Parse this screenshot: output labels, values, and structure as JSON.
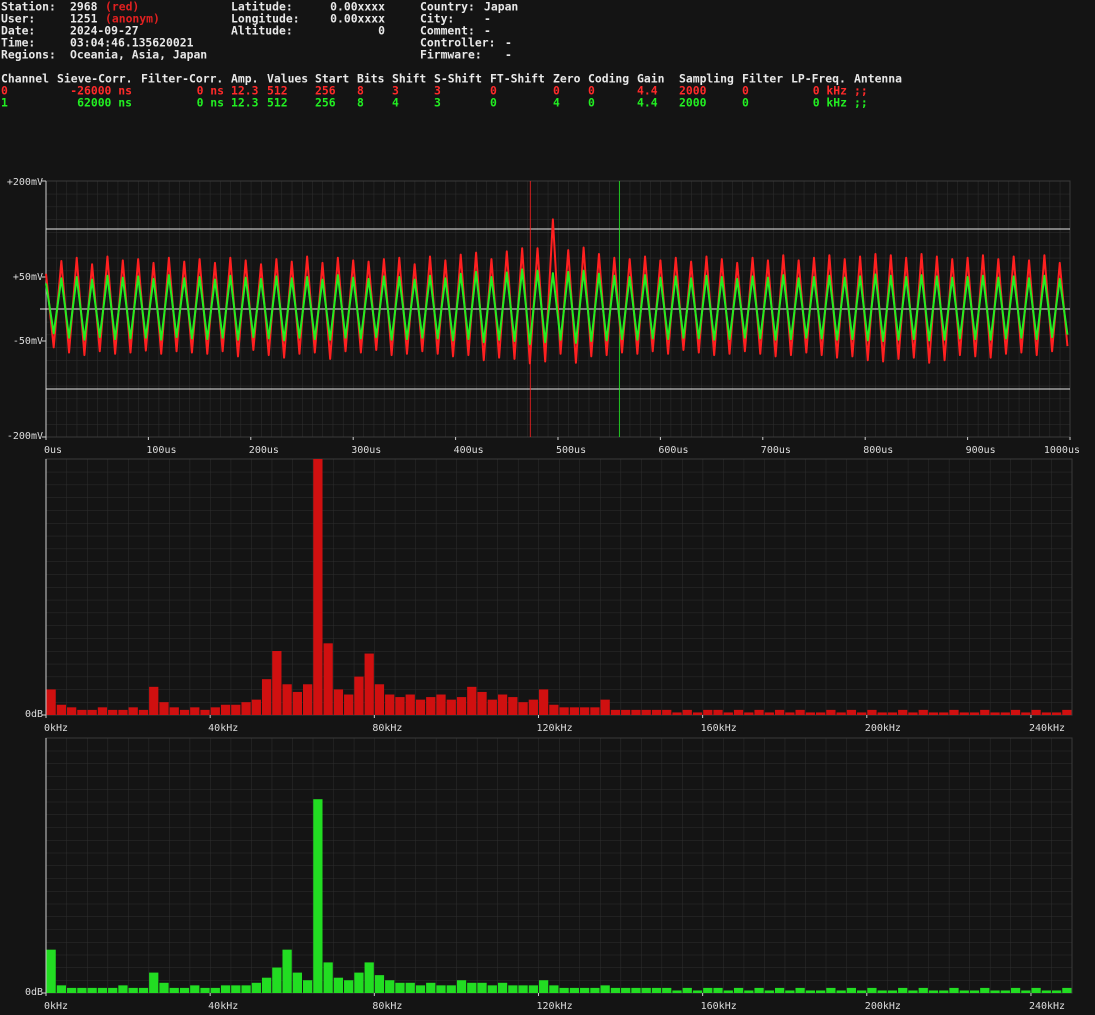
{
  "info": {
    "left": [
      {
        "label": "Station:",
        "value": "2968",
        "note": "(red)"
      },
      {
        "label": "User:",
        "value": "1251",
        "note": "(anonym)"
      },
      {
        "label": "Date:",
        "value": "2024-09-27"
      },
      {
        "label": "Time:",
        "value": "03:04:46.135620021"
      },
      {
        "label": "Regions:",
        "value": "Oceania, Asia, Japan"
      }
    ],
    "middle": [
      {
        "label": "Latitude:",
        "value": "0.00xxxx"
      },
      {
        "label": "Longitude:",
        "value": "0.00xxxx"
      },
      {
        "label": "Altitude:",
        "value": "0"
      }
    ],
    "right": [
      {
        "label": "Country:",
        "value": "Japan"
      },
      {
        "label": "City:",
        "value": "-"
      },
      {
        "label": "Comment:",
        "value": "-"
      },
      {
        "label": "Controller:",
        "value": "-"
      },
      {
        "label": "Firmware:",
        "value": "-"
      }
    ]
  },
  "table": {
    "header": [
      "Channel",
      "Sieve-Corr.",
      "Filter-Corr.",
      "Amp.",
      "Values",
      "Start",
      "Bits",
      "Shift",
      "S-Shift",
      "FT-Shift",
      "Zero",
      "Coding",
      "Gain",
      "Sampling",
      "Filter",
      "LP-Freq.",
      "Antenna"
    ],
    "rows": [
      [
        "0",
        "-26000 ns",
        "0 ns",
        "12.3",
        "512",
        "256",
        "8",
        "3",
        "3",
        "0",
        "0",
        "0",
        "4.4",
        "2000",
        "0",
        "0 kHz",
        ";;"
      ],
      [
        "1",
        "62000 ns",
        "0 ns",
        "12.3",
        "512",
        "256",
        "8",
        "4",
        "3",
        "0",
        "4",
        "0",
        "4.4",
        "2000",
        "0",
        "0 kHz",
        ";;"
      ]
    ],
    "row_colors": [
      "#ff2a2a",
      "#22ee22"
    ]
  },
  "chart_data": [
    {
      "type": "line",
      "grid": true,
      "x": [
        0,
        7.5,
        15,
        22.5,
        30,
        37.5,
        45,
        52.5,
        60,
        67.5,
        75,
        82.5,
        90,
        97.5,
        105,
        112.5,
        120,
        127.5,
        135,
        142.5,
        150,
        157.5,
        165,
        172.5,
        180,
        187.5,
        195,
        202.5,
        210,
        217.5,
        225,
        232.5,
        240,
        247.5,
        255,
        262.5,
        270,
        277.5,
        285,
        292.5,
        300,
        307.5,
        315,
        322.5,
        330,
        337.5,
        345,
        352.5,
        360,
        367.5,
        375,
        382.5,
        390,
        397.5,
        405,
        412.5,
        420,
        427.5,
        435,
        442.5,
        450,
        457.5,
        465,
        472.5,
        480,
        487.5,
        495,
        502.5,
        510,
        517.5,
        525,
        532.5,
        540,
        547.5,
        555,
        562.5,
        570,
        577.5,
        585,
        592.5,
        600,
        607.5,
        615,
        622.5,
        630,
        637.5,
        645,
        652.5,
        660,
        667.5,
        675,
        682.5,
        690,
        697.5,
        705,
        712.5,
        720,
        727.5,
        735,
        742.5,
        750,
        757.5,
        765,
        772.5,
        780,
        787.5,
        795,
        802.5,
        810,
        817.5,
        825,
        832.5,
        840,
        847.5,
        855,
        862.5,
        870,
        877.5,
        885,
        892.5,
        900,
        907.5,
        915,
        922.5,
        930,
        937.5,
        945,
        952.5,
        960,
        967.5,
        975,
        982.5,
        990,
        997.5
      ],
      "xlim": [
        0,
        1000
      ],
      "xticks": [
        {
          "value": 0,
          "label": "0us"
        },
        {
          "value": 100,
          "label": "100us"
        },
        {
          "value": 200,
          "label": "200us"
        },
        {
          "value": 300,
          "label": "300us"
        },
        {
          "value": 400,
          "label": "400us"
        },
        {
          "value": 500,
          "label": "500us"
        },
        {
          "value": 600,
          "label": "600us"
        },
        {
          "value": 700,
          "label": "700us"
        },
        {
          "value": 800,
          "label": "800us"
        },
        {
          "value": 900,
          "label": "900us"
        },
        {
          "value": 1000,
          "label": "1000us"
        }
      ],
      "ylim": [
        -200,
        200
      ],
      "yticks": [
        {
          "value": 200,
          "label": "+200mV"
        },
        {
          "value": 50,
          "label": "+50mV"
        },
        {
          "value": -50,
          "label": "-50mV"
        },
        {
          "value": -200,
          "label": "-200mV"
        }
      ],
      "reference_lines": [
        125,
        0,
        -125
      ],
      "series": [
        {
          "color": "#ff2020",
          "marker": 473,
          "values": [
            55,
            -60,
            75,
            -68,
            80,
            -72,
            70,
            -66,
            82,
            -70,
            76,
            -68,
            78,
            -65,
            72,
            -70,
            80,
            -66,
            74,
            -68,
            78,
            -70,
            72,
            -66,
            80,
            -74,
            76,
            -64,
            70,
            -72,
            78,
            -76,
            74,
            -70,
            82,
            -68,
            72,
            -78,
            80,
            -66,
            76,
            -68,
            74,
            -64,
            78,
            -72,
            80,
            -70,
            70,
            -66,
            82,
            -70,
            76,
            -74,
            85,
            -72,
            88,
            -80,
            78,
            -76,
            90,
            -78,
            95,
            -85,
            95,
            -82,
            140,
            -70,
            92,
            -84,
            96,
            -74,
            86,
            -72,
            80,
            -68,
            78,
            -70,
            82,
            -66,
            76,
            -70,
            80,
            -64,
            74,
            -68,
            82,
            -72,
            78,
            -70,
            72,
            -66,
            80,
            -70,
            76,
            -74,
            84,
            -72,
            76,
            -68,
            80,
            -72,
            84,
            -76,
            78,
            -74,
            82,
            -80,
            86,
            -82,
            84,
            -78,
            80,
            -76,
            86,
            -84,
            82,
            -80,
            78,
            -72,
            80,
            -74,
            84,
            -76,
            78,
            -70,
            82,
            -68,
            76,
            -72,
            84,
            -66,
            72,
            -58
          ]
        },
        {
          "color": "#22ee22",
          "marker": 560,
          "values": [
            40,
            -38,
            48,
            -45,
            50,
            -48,
            46,
            -44,
            52,
            -47,
            49,
            -46,
            51,
            -45,
            47,
            -48,
            53,
            -44,
            48,
            -46,
            50,
            -47,
            46,
            -45,
            52,
            -48,
            49,
            -44,
            47,
            -46,
            51,
            -49,
            48,
            -45,
            50,
            -47,
            46,
            -48,
            53,
            -45,
            49,
            -46,
            47,
            -44,
            51,
            -48,
            50,
            -47,
            46,
            -45,
            52,
            -46,
            48,
            -49,
            55,
            -47,
            58,
            -52,
            50,
            -48,
            57,
            -50,
            62,
            -55,
            60,
            -52,
            56,
            -48,
            58,
            -53,
            60,
            -50,
            55,
            -49,
            52,
            -47,
            50,
            -48,
            53,
            -46,
            49,
            -47,
            51,
            -45,
            48,
            -46,
            52,
            -48,
            50,
            -47,
            47,
            -45,
            51,
            -46,
            49,
            -48,
            53,
            -47,
            48,
            -45,
            50,
            -46,
            52,
            -48,
            49,
            -47,
            51,
            -49,
            54,
            -50,
            52,
            -48,
            50,
            -47,
            53,
            -49,
            51,
            -48,
            49,
            -46,
            50,
            -47,
            52,
            -48,
            49,
            -46,
            51,
            -45,
            48,
            -47,
            52,
            -44,
            47,
            -40
          ]
        }
      ]
    },
    {
      "type": "histogram",
      "grid": true,
      "color": "#d01010",
      "bins": [
        0,
        2.5,
        5,
        7.5,
        10,
        12.5,
        15,
        17.5,
        20,
        22.5,
        25,
        27.5,
        30,
        32.5,
        35,
        37.5,
        40,
        42.5,
        45,
        47.5,
        50,
        52.5,
        55,
        57.5,
        60,
        62.5,
        65,
        67.5,
        70,
        72.5,
        75,
        77.5,
        80,
        82.5,
        85,
        87.5,
        90,
        92.5,
        95,
        97.5,
        100,
        102.5,
        105,
        107.5,
        110,
        112.5,
        115,
        117.5,
        120,
        122.5,
        125,
        127.5,
        130,
        132.5,
        135,
        137.5,
        140,
        142.5,
        145,
        147.5,
        150,
        152.5,
        155,
        157.5,
        160,
        162.5,
        165,
        167.5,
        170,
        172.5,
        175,
        177.5,
        180,
        182.5,
        185,
        187.5,
        190,
        192.5,
        195,
        197.5,
        200,
        202.5,
        205,
        207.5,
        210,
        212.5,
        215,
        217.5,
        220,
        222.5,
        225,
        227.5,
        230,
        232.5,
        235,
        237.5,
        240,
        242.5,
        245,
        247.5,
        250
      ],
      "values": [
        10,
        4,
        3,
        2,
        2,
        3,
        2,
        2,
        3,
        2,
        11,
        5,
        3,
        2,
        3,
        2,
        3,
        4,
        4,
        5,
        6,
        14,
        25,
        12,
        9,
        12,
        100,
        28,
        10,
        8,
        15,
        24,
        12,
        8,
        7,
        8,
        6,
        7,
        8,
        6,
        7,
        11,
        9,
        6,
        8,
        7,
        5,
        6,
        10,
        4,
        3,
        3,
        3,
        3,
        6,
        2,
        2,
        2,
        2,
        2,
        2,
        1,
        2,
        1,
        2,
        2,
        1,
        2,
        1,
        2,
        1,
        2,
        1,
        2,
        1,
        1,
        2,
        1,
        2,
        1,
        2,
        1,
        1,
        2,
        1,
        2,
        1,
        1,
        2,
        1,
        1,
        2,
        1,
        1,
        2,
        1,
        2,
        1,
        1,
        2
      ],
      "xlim": [
        0,
        250
      ],
      "xticks": [
        {
          "value": 0,
          "label": "0kHz"
        },
        {
          "value": 40,
          "label": "40kHz"
        },
        {
          "value": 80,
          "label": "80kHz"
        },
        {
          "value": 120,
          "label": "120kHz"
        },
        {
          "value": 160,
          "label": "160kHz"
        },
        {
          "value": 200,
          "label": "200kHz"
        },
        {
          "value": 240,
          "label": "240kHz"
        }
      ],
      "ylim": [
        0,
        100
      ],
      "yticks": [
        {
          "value": 0,
          "label": "0dB"
        }
      ]
    },
    {
      "type": "histogram",
      "grid": true,
      "color": "#22dd22",
      "bins": [
        0,
        2.5,
        5,
        7.5,
        10,
        12.5,
        15,
        17.5,
        20,
        22.5,
        25,
        27.5,
        30,
        32.5,
        35,
        37.5,
        40,
        42.5,
        45,
        47.5,
        50,
        52.5,
        55,
        57.5,
        60,
        62.5,
        65,
        67.5,
        70,
        72.5,
        75,
        77.5,
        80,
        82.5,
        85,
        87.5,
        90,
        92.5,
        95,
        97.5,
        100,
        102.5,
        105,
        107.5,
        110,
        112.5,
        115,
        117.5,
        120,
        122.5,
        125,
        127.5,
        130,
        132.5,
        135,
        137.5,
        140,
        142.5,
        145,
        147.5,
        150,
        152.5,
        155,
        157.5,
        160,
        162.5,
        165,
        167.5,
        170,
        172.5,
        175,
        177.5,
        180,
        182.5,
        185,
        187.5,
        190,
        192.5,
        195,
        197.5,
        200,
        202.5,
        205,
        207.5,
        210,
        212.5,
        215,
        217.5,
        220,
        222.5,
        225,
        227.5,
        230,
        232.5,
        235,
        237.5,
        240,
        242.5,
        245,
        247.5,
        250
      ],
      "values": [
        17,
        3,
        2,
        2,
        2,
        2,
        2,
        3,
        2,
        2,
        8,
        4,
        2,
        2,
        3,
        2,
        2,
        3,
        3,
        3,
        4,
        6,
        10,
        17,
        8,
        5,
        76,
        12,
        6,
        5,
        8,
        12,
        7,
        5,
        4,
        4,
        3,
        4,
        3,
        3,
        5,
        4,
        4,
        3,
        4,
        3,
        3,
        3,
        5,
        3,
        2,
        2,
        2,
        2,
        3,
        2,
        2,
        2,
        2,
        2,
        2,
        1,
        2,
        1,
        2,
        2,
        1,
        2,
        1,
        2,
        1,
        2,
        1,
        2,
        1,
        1,
        2,
        1,
        2,
        1,
        2,
        1,
        1,
        2,
        1,
        2,
        1,
        1,
        2,
        1,
        1,
        2,
        1,
        1,
        2,
        1,
        2,
        1,
        1,
        2
      ],
      "xlim": [
        0,
        250
      ],
      "xticks": [
        {
          "value": 0,
          "label": "0kHz"
        },
        {
          "value": 40,
          "label": "40kHz"
        },
        {
          "value": 80,
          "label": "80kHz"
        },
        {
          "value": 120,
          "label": "120kHz"
        },
        {
          "value": 160,
          "label": "160kHz"
        },
        {
          "value": 200,
          "label": "200kHz"
        },
        {
          "value": 240,
          "label": "240kHz"
        }
      ],
      "ylim": [
        0,
        100
      ],
      "yticks": [
        {
          "value": 0,
          "label": "0dB"
        }
      ]
    }
  ]
}
